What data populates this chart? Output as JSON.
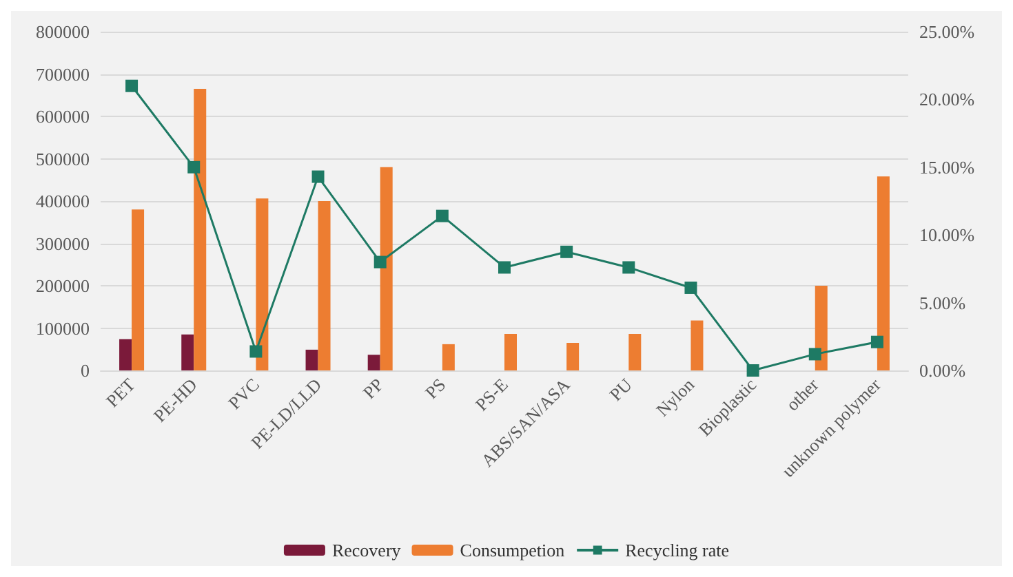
{
  "chart_data": {
    "type": "bar",
    "categories": [
      "PET",
      "PE-HD",
      "PVC",
      "PE-LD/LLD",
      "PP",
      "PS",
      "PS-E",
      "ABS/SAN/ASA",
      "PU",
      "Nylon",
      "Bioplastic",
      "other",
      "unknown polymer"
    ],
    "series": [
      {
        "name": "Recovery",
        "color": "#7b1a3a",
        "values": [
          74000,
          85000,
          null,
          49000,
          37000,
          null,
          null,
          null,
          null,
          null,
          null,
          null,
          null
        ]
      },
      {
        "name": "Consumpetion",
        "color": "#ed7d31",
        "values": [
          380000,
          665000,
          406000,
          400000,
          480000,
          62000,
          86000,
          65000,
          86000,
          118000,
          null,
          200000,
          458000
        ]
      },
      {
        "name": "Recycling rate",
        "type": "line",
        "axis": "y2",
        "color": "#1e7a64",
        "values": [
          21.0,
          15.0,
          1.4,
          14.3,
          8.0,
          11.4,
          7.6,
          8.75,
          7.6,
          6.1,
          0,
          1.2,
          2.1
        ]
      }
    ],
    "ylim": [
      0,
      800000
    ],
    "yticks": [
      0,
      100000,
      200000,
      300000,
      400000,
      500000,
      600000,
      700000,
      800000
    ],
    "y2lim": [
      0,
      25
    ],
    "y2ticks": [
      {
        "value": 0,
        "label": "0.00%"
      },
      {
        "value": 5,
        "label": "5.00%"
      },
      {
        "value": 10,
        "label": "10.00%"
      },
      {
        "value": 15,
        "label": "15.00%"
      },
      {
        "value": 20,
        "label": "20.00%"
      },
      {
        "value": 25,
        "label": "25.00%"
      }
    ],
    "grid": "y",
    "legend": "bottom",
    "marker": "square",
    "line_style": "solid"
  }
}
